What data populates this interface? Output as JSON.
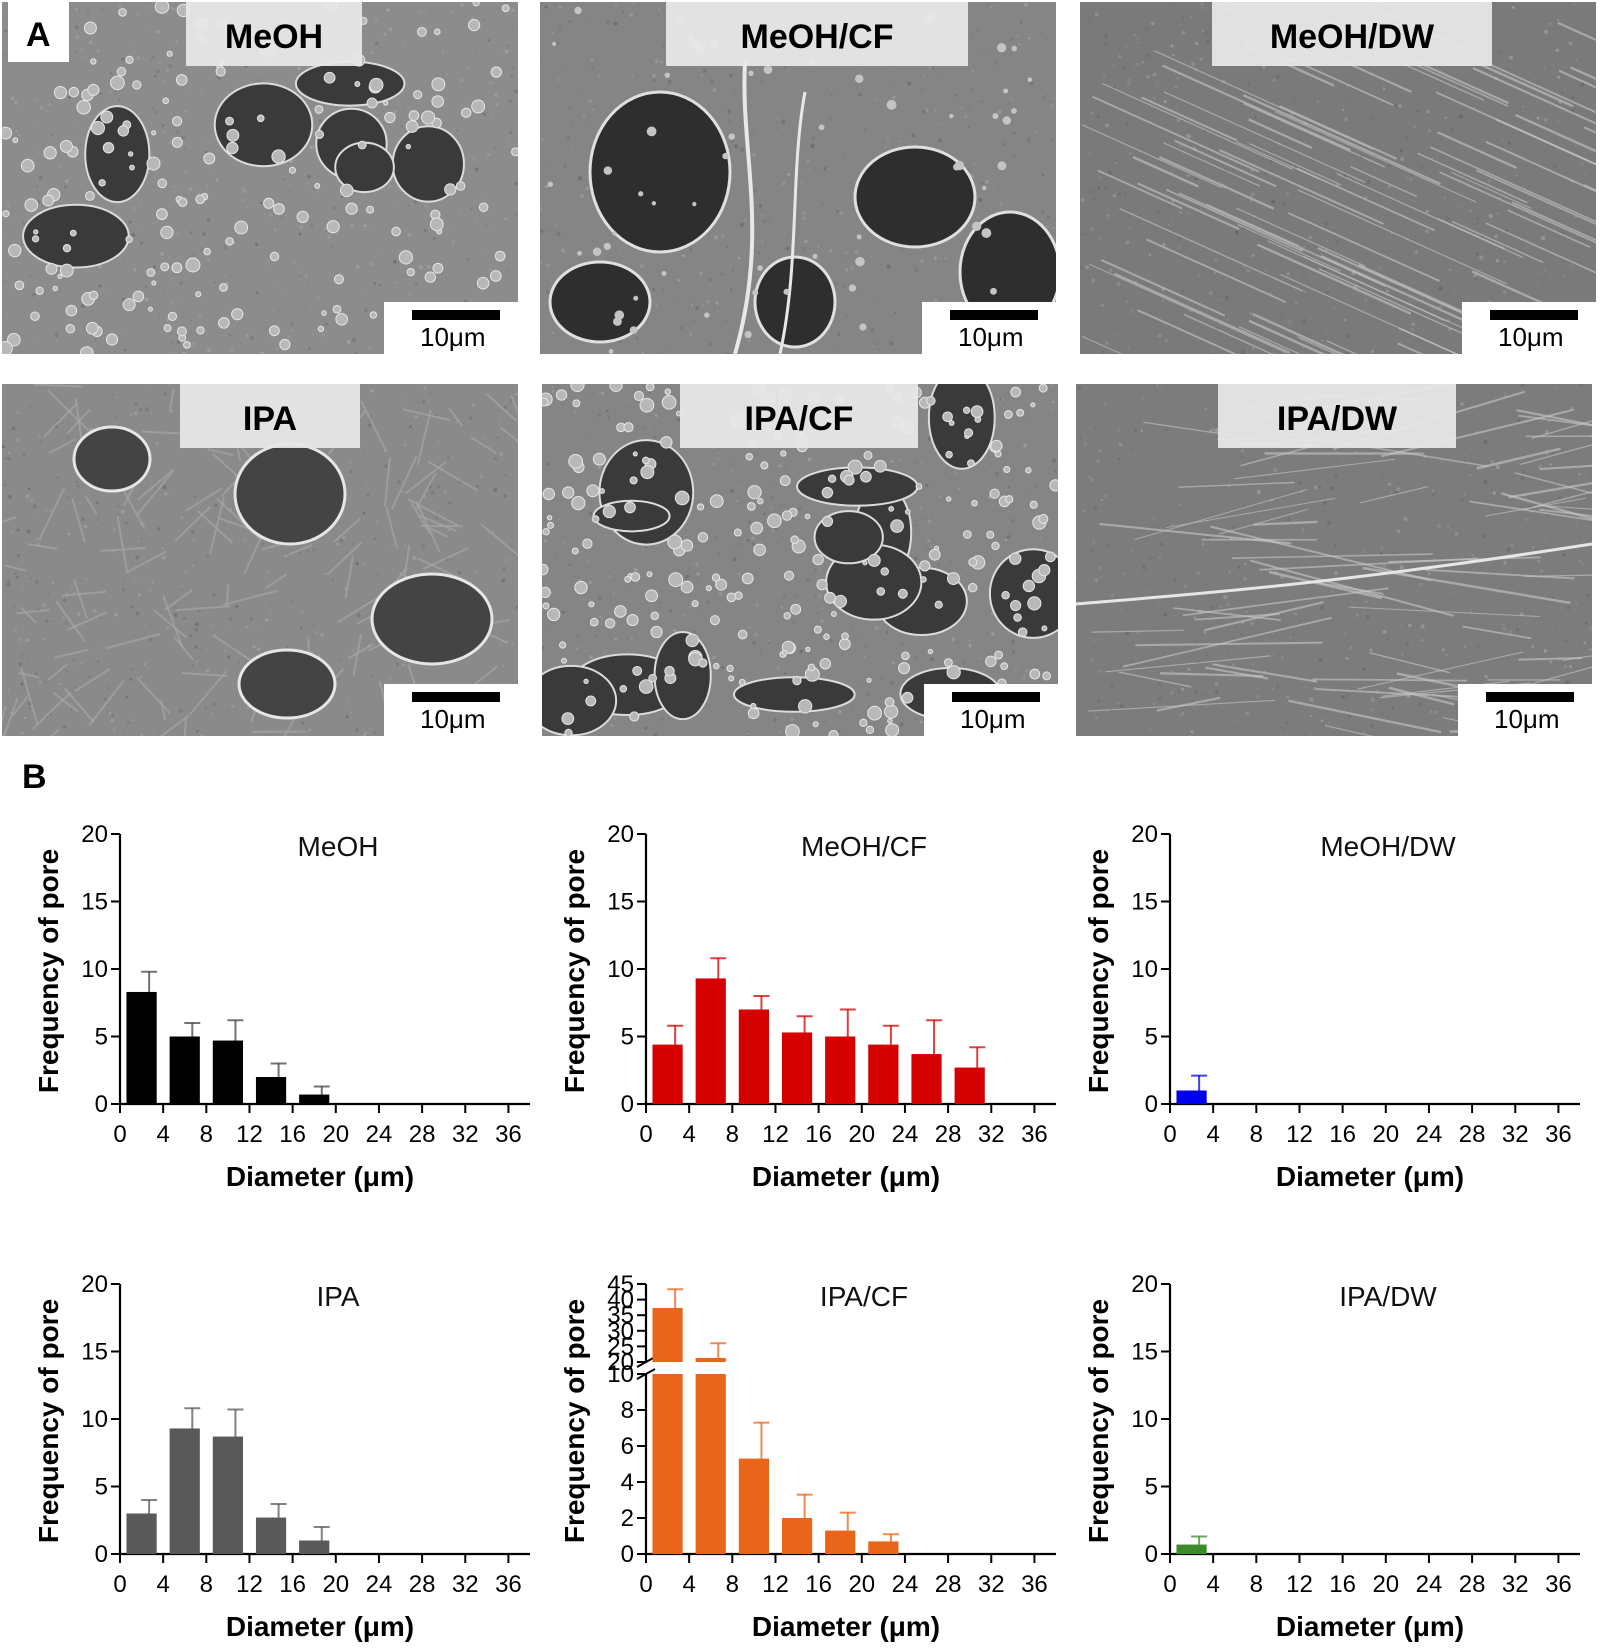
{
  "panel_letters": {
    "a": "A",
    "b": "B"
  },
  "sem_images": [
    {
      "label": "MeOH",
      "scale": "10μm",
      "style": "porous-rough"
    },
    {
      "label": "MeOH/CF",
      "scale": "10μm",
      "style": "large-pores"
    },
    {
      "label": "MeOH/DW",
      "scale": "10μm",
      "style": "smooth-streaked"
    },
    {
      "label": "IPA",
      "scale": "10μm",
      "style": "wrinkled-pores"
    },
    {
      "label": "IPA/CF",
      "scale": "10μm",
      "style": "granular-rough"
    },
    {
      "label": "IPA/DW",
      "scale": "10μm",
      "style": "smooth-ridged"
    }
  ],
  "chart_data": [
    {
      "type": "bar",
      "title": "MeOH",
      "xlabel": "Diameter (μm)",
      "ylabel": "Frequency of pore",
      "color": "#000000",
      "x_ticks": [
        0,
        4,
        8,
        12,
        16,
        20,
        24,
        28,
        32,
        36
      ],
      "xlim": [
        0,
        38
      ],
      "ylim": [
        0,
        20
      ],
      "y_ticks": [
        0,
        5,
        10,
        15,
        20
      ],
      "x": [
        2,
        6,
        10,
        14,
        18
      ],
      "values": [
        8.3,
        5.0,
        4.7,
        2.0,
        0.7
      ],
      "errors": [
        1.5,
        1.0,
        1.5,
        1.0,
        0.6
      ]
    },
    {
      "type": "bar",
      "title": "MeOH/CF",
      "xlabel": "Diameter (μm)",
      "ylabel": "Frequency of pore",
      "color": "#d50000",
      "x_ticks": [
        0,
        4,
        8,
        12,
        16,
        20,
        24,
        28,
        32,
        36
      ],
      "xlim": [
        0,
        38
      ],
      "ylim": [
        0,
        20
      ],
      "y_ticks": [
        0,
        5,
        10,
        15,
        20
      ],
      "x": [
        2,
        6,
        10,
        14,
        18,
        22,
        26,
        30
      ],
      "values": [
        4.4,
        9.3,
        7.0,
        5.3,
        5.0,
        4.4,
        3.7,
        2.7
      ],
      "errors": [
        1.4,
        1.5,
        1.0,
        1.2,
        2.0,
        1.4,
        2.5,
        1.5
      ]
    },
    {
      "type": "bar",
      "title": "MeOH/DW",
      "xlabel": "Diameter (μm)",
      "ylabel": "Frequency of pore",
      "color": "#0000ee",
      "x_ticks": [
        0,
        4,
        8,
        12,
        16,
        20,
        24,
        28,
        32,
        36
      ],
      "xlim": [
        0,
        38
      ],
      "ylim": [
        0,
        20
      ],
      "y_ticks": [
        0,
        5,
        10,
        15,
        20
      ],
      "x": [
        2
      ],
      "values": [
        1.0
      ],
      "errors": [
        1.1
      ]
    },
    {
      "type": "bar",
      "title": "IPA",
      "xlabel": "Diameter (μm)",
      "ylabel": "Frequency of pore",
      "color": "#595959",
      "x_ticks": [
        0,
        4,
        8,
        12,
        16,
        20,
        24,
        28,
        32,
        36
      ],
      "xlim": [
        0,
        38
      ],
      "ylim": [
        0,
        20
      ],
      "y_ticks": [
        0,
        5,
        10,
        15,
        20
      ],
      "x": [
        2,
        6,
        10,
        14,
        18
      ],
      "values": [
        3.0,
        9.3,
        8.7,
        2.7,
        1.0
      ],
      "errors": [
        1.0,
        1.5,
        2.0,
        1.0,
        1.0
      ]
    },
    {
      "type": "bar",
      "title": "IPA/CF",
      "xlabel": "Diameter (μm)",
      "ylabel": "Frequency of pore",
      "color": "#e8651a",
      "x_ticks": [
        0,
        4,
        8,
        12,
        16,
        20,
        24,
        28,
        32,
        36
      ],
      "xlim": [
        0,
        38
      ],
      "y_axis": {
        "broken": true,
        "lower": [
          0,
          10
        ],
        "upper": [
          20,
          45
        ],
        "lower_ticks": [
          0,
          2,
          4,
          6,
          8,
          10
        ],
        "upper_ticks": [
          20,
          25,
          30,
          35,
          40,
          45
        ]
      },
      "x": [
        2,
        6,
        10,
        14,
        18,
        22
      ],
      "values": [
        37.3,
        21.3,
        5.3,
        2.0,
        1.3,
        0.7
      ],
      "errors": [
        6.0,
        4.7,
        2.0,
        1.3,
        1.0,
        0.4
      ]
    },
    {
      "type": "bar",
      "title": "IPA/DW",
      "xlabel": "Diameter (μm)",
      "ylabel": "Frequency of pore",
      "color": "#3d8a2a",
      "x_ticks": [
        0,
        4,
        8,
        12,
        16,
        20,
        24,
        28,
        32,
        36
      ],
      "xlim": [
        0,
        38
      ],
      "ylim": [
        0,
        20
      ],
      "y_ticks": [
        0,
        5,
        10,
        15,
        20
      ],
      "x": [
        2
      ],
      "values": [
        0.7
      ],
      "errors": [
        0.6
      ]
    }
  ]
}
